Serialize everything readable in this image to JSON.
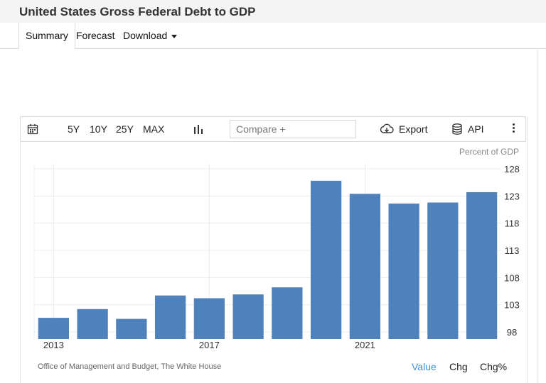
{
  "page": {
    "title": "United States Gross Federal Debt to GDP"
  },
  "tabs": [
    {
      "label": "Summary",
      "active": true
    },
    {
      "label": "Forecast"
    },
    {
      "label": "Download",
      "dropdown": true
    }
  ],
  "toolbar": {
    "ranges": [
      "5Y",
      "10Y",
      "25Y",
      "MAX"
    ],
    "compare_placeholder": "Compare +",
    "export_label": "Export",
    "api_label": "API",
    "icons": [
      "calendar-icon",
      "bar-chart-icon",
      "cloud-download-icon",
      "database-icon",
      "more-vertical-icon"
    ]
  },
  "chart_data": {
    "type": "bar",
    "unit_label": "Percent of GDP",
    "x_tick_labels": [
      "2013",
      "2017",
      "2021"
    ],
    "categories": [
      "2013",
      "2014",
      "2015",
      "2016",
      "2017",
      "2018",
      "2019",
      "2020",
      "2021",
      "2022",
      "2023",
      "2024"
    ],
    "values": [
      100.6,
      102.2,
      100.4,
      104.7,
      104.2,
      104.9,
      106.2,
      125.8,
      123.4,
      121.6,
      121.8,
      123.7
    ],
    "ylim": [
      97,
      128
    ],
    "yticks": [
      98,
      103,
      108,
      113,
      118,
      123,
      128
    ],
    "bar_color": "#4f81bd",
    "grid": true,
    "y_axis_side": "right"
  },
  "footer": {
    "source": "Office of Management and Budget, The White House",
    "view_buttons": [
      "Value",
      "Chg",
      "Chg%"
    ],
    "active_view": "Value",
    "active_color": "#3a8fd8"
  }
}
